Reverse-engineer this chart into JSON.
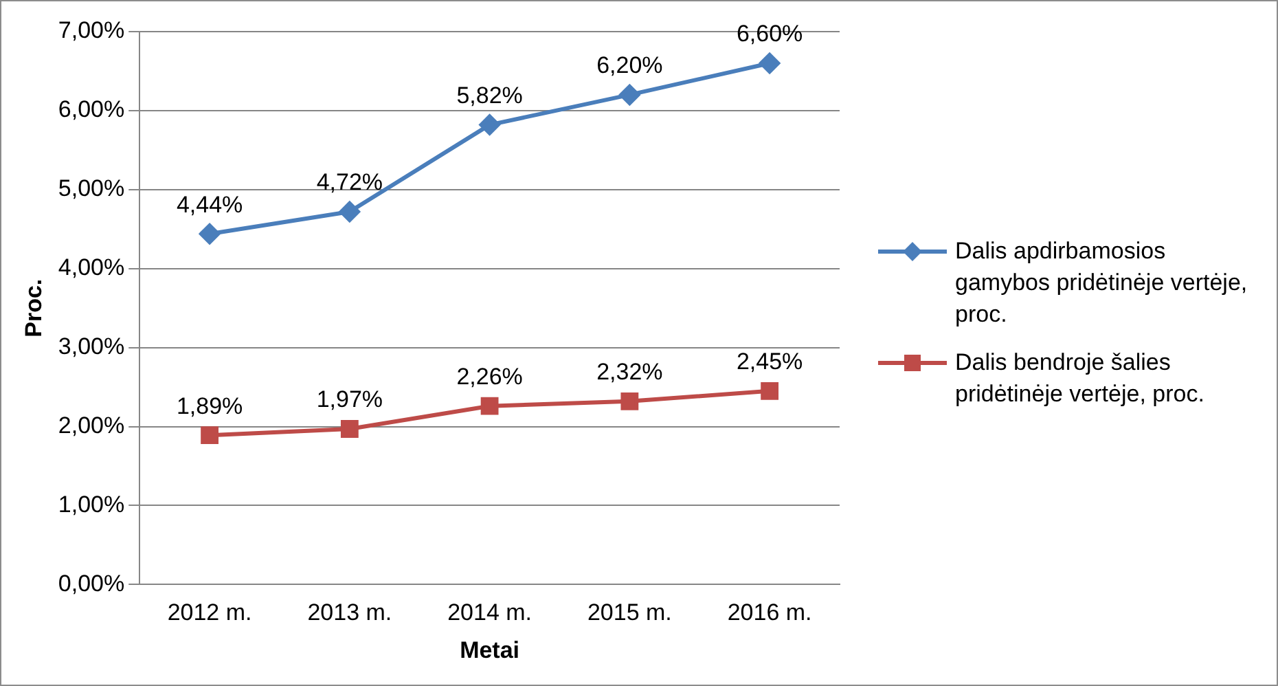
{
  "chart_data": {
    "type": "line",
    "xlabel": "Metai",
    "ylabel": "Proc.",
    "categories": [
      "2012 m.",
      "2013 m.",
      "2014 m.",
      "2015 m.",
      "2016 m."
    ],
    "series": [
      {
        "name": "Dalis apdirbamosios gamybos pridėtinėje vertėje, proc.",
        "color": "#4a7ebb",
        "marker": "diamond",
        "values": [
          4.44,
          4.72,
          5.82,
          6.2,
          6.6
        ],
        "value_labels": [
          "4,44%",
          "4,72%",
          "5,82%",
          "6,20%",
          "6,60%"
        ]
      },
      {
        "name": "Dalis bendroje šalies pridėtinėje vertėje, proc.",
        "color": "#be4b48",
        "marker": "square",
        "values": [
          1.89,
          1.97,
          2.26,
          2.32,
          2.45
        ],
        "value_labels": [
          "1,89%",
          "1,97%",
          "2,26%",
          "2,32%",
          "2,45%"
        ]
      }
    ],
    "ylim": [
      0,
      7
    ],
    "yticks": [
      {
        "value": 0,
        "label": "0,00%"
      },
      {
        "value": 1,
        "label": "1,00%"
      },
      {
        "value": 2,
        "label": "2,00%"
      },
      {
        "value": 3,
        "label": "3,00%"
      },
      {
        "value": 4,
        "label": "4,00%"
      },
      {
        "value": 5,
        "label": "5,00%"
      },
      {
        "value": 6,
        "label": "6,00%"
      },
      {
        "value": 7,
        "label": "7,00%"
      }
    ],
    "grid": "y",
    "legend": "right",
    "line_style": "solid"
  }
}
